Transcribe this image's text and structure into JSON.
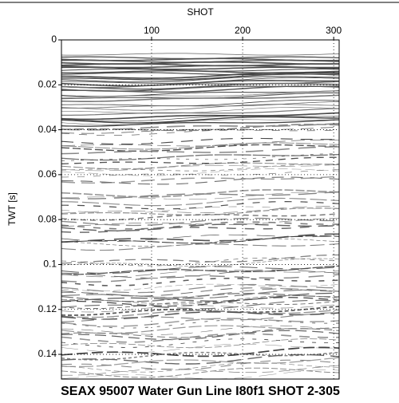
{
  "chart_data": {
    "type": "seismic",
    "title": "SEAX 95007 Water Gun Line I80f1 SHOT 2-305",
    "x_label": "SHOT",
    "y_label": "TWT [s]",
    "xlim": [
      1,
      306
    ],
    "xticks": [
      100,
      200,
      300
    ],
    "ylim": [
      0,
      0.151
    ],
    "yticks": [
      0,
      0.02,
      0.04,
      0.06,
      0.08,
      0.1,
      0.12,
      0.14
    ],
    "y_reversed": true,
    "grid": true
  }
}
